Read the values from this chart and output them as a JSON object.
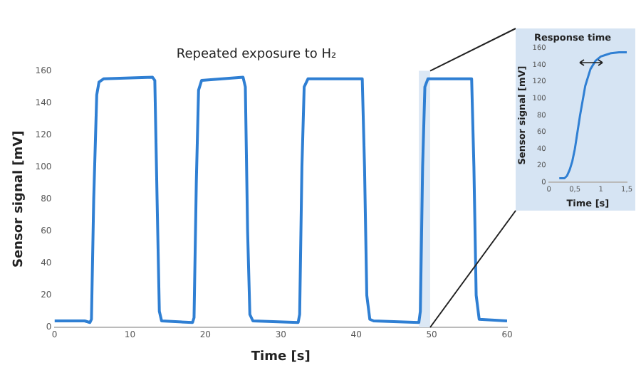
{
  "chart_data": [
    {
      "type": "line",
      "title": "Repeated exposure to H₂",
      "xlabel": "Time [s]",
      "ylabel": "Sensor signal [mV]",
      "x": [
        0,
        4,
        4.7,
        4.9,
        5.2,
        5.6,
        5.9,
        6.5,
        13,
        13.3,
        13.6,
        13.9,
        14.2,
        18.3,
        18.5,
        18.8,
        19.1,
        19.5,
        25,
        25.3,
        25.6,
        25.9,
        26.3,
        32.3,
        32.5,
        32.8,
        33.1,
        33.6,
        40.8,
        41.1,
        41.4,
        41.8,
        42.3,
        48.3,
        48.5,
        48.8,
        49.1,
        49.5,
        55.3,
        55.6,
        55.9,
        56.3,
        60
      ],
      "series": [
        {
          "color": "#2f7fd3",
          "values": [
            4,
            4,
            3,
            5,
            80,
            145,
            153,
            155,
            156,
            154,
            80,
            10,
            4,
            3,
            6,
            90,
            148,
            154,
            156,
            150,
            60,
            8,
            4,
            3,
            8,
            100,
            150,
            155,
            155,
            100,
            20,
            5,
            4,
            3,
            10,
            100,
            150,
            155,
            155,
            100,
            20,
            5,
            4
          ]
        }
      ],
      "bands": [
        {
          "axis": "x",
          "from": 48.3,
          "to": 49.8,
          "color": "#dce8f5"
        }
      ],
      "xlim": [
        0,
        60
      ],
      "xticks": [
        0,
        10,
        20,
        30,
        40,
        50,
        60
      ],
      "ylim": [
        0,
        160
      ],
      "yticks": [
        0,
        20,
        40,
        60,
        80,
        100,
        120,
        140,
        160
      ]
    },
    {
      "type": "line",
      "title": "Response time",
      "xlabel": "Time [s]",
      "ylabel": "Sensor signal [mV]",
      "x": [
        0.2,
        0.3,
        0.35,
        0.4,
        0.45,
        0.5,
        0.6,
        0.7,
        0.8,
        0.9,
        1,
        1.1,
        1.2,
        1.35,
        1.5
      ],
      "series": [
        {
          "color": "#2f7fd3",
          "values": [
            5,
            5,
            8,
            15,
            25,
            40,
            80,
            115,
            135,
            145,
            150,
            152,
            154,
            155,
            155
          ]
        }
      ],
      "xlim": [
        0,
        1.5
      ],
      "xticks": [
        0,
        {
          "value": 0.5,
          "label": "0,5"
        },
        1,
        {
          "value": 1.5,
          "label": "1,5"
        }
      ],
      "ylim": [
        0,
        160
      ],
      "yticks": [
        0,
        20,
        40,
        60,
        80,
        100,
        120,
        140,
        160
      ]
    }
  ]
}
